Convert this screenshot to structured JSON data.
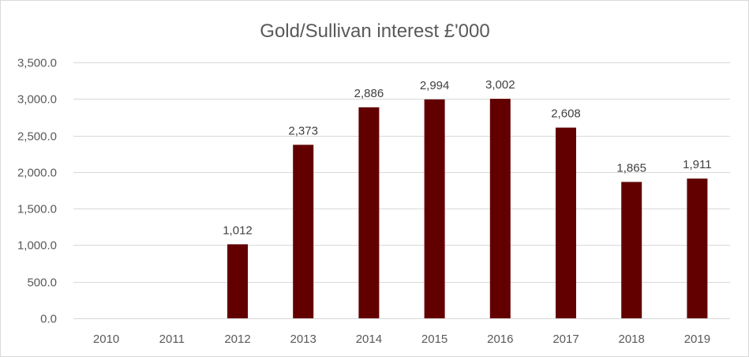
{
  "chart_data": {
    "type": "bar",
    "title": "Gold/Sullivan interest  £'000",
    "xlabel": "",
    "ylabel": "",
    "categories": [
      "2010",
      "2011",
      "2012",
      "2013",
      "2014",
      "2015",
      "2016",
      "2017",
      "2018",
      "2019"
    ],
    "values": [
      0,
      0,
      1012,
      2373,
      2886,
      2994,
      3002,
      2608,
      1865,
      1911
    ],
    "data_labels": [
      "",
      "",
      "1,012",
      "2,373",
      "2,886",
      "2,994",
      "3,002",
      "2,608",
      "1,865",
      "1,911"
    ],
    "ylim": [
      0,
      3500
    ],
    "y_ticks": [
      0,
      500,
      1000,
      1500,
      2000,
      2500,
      3000,
      3500
    ],
    "y_tick_labels": [
      "0.0",
      "500.0",
      "1,000.0",
      "1,500.0",
      "2,000.0",
      "2,500.0",
      "3,000.0",
      "3,500.0"
    ],
    "grid": true,
    "legend": "none",
    "colors": {
      "bar": "#620000",
      "grid": "#d9d9d9",
      "text": "#595959"
    }
  }
}
